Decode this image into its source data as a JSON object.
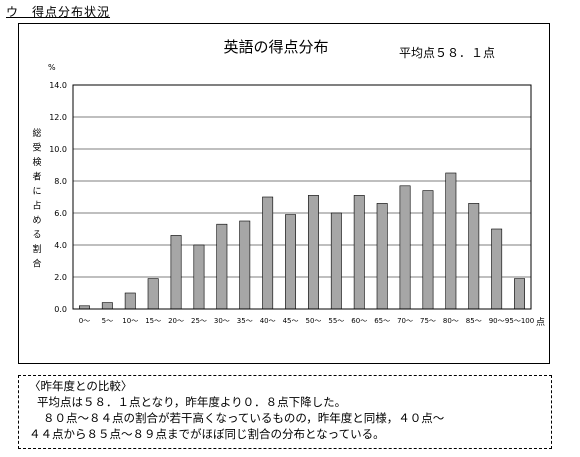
{
  "section_heading": "ウ　得点分布状況",
  "chart_data": {
    "type": "bar",
    "title": "英語の得点分布",
    "subtitle": "平均点５８．１点",
    "ylabel": "総受検者に占める割合",
    "yunit": "%",
    "xunit": "点",
    "ylim": [
      0,
      14
    ],
    "yticks": [
      "0.0",
      "2.0",
      "4.0",
      "6.0",
      "8.0",
      "10.0",
      "12.0",
      "14.0"
    ],
    "grid": true,
    "categories": [
      "0～",
      "5～",
      "10～",
      "15～",
      "20～",
      "25～",
      "30～",
      "35～",
      "40～",
      "45～",
      "50～",
      "55～",
      "60～",
      "65～",
      "70～",
      "75～",
      "80～",
      "85～",
      "90～",
      "95～100"
    ],
    "values": [
      0.2,
      0.4,
      1.0,
      1.9,
      4.6,
      4.0,
      5.3,
      5.5,
      7.0,
      5.9,
      7.1,
      6.0,
      7.1,
      6.6,
      7.7,
      7.4,
      8.5,
      6.6,
      5.0,
      1.9
    ],
    "bar_color": "#a6a6a6"
  },
  "comparison": {
    "heading": "〈昨年度との比較〉",
    "lines": [
      "平均点は５８．１点となり，昨年度より０．８点下降した。",
      "８０点～８４点の割合が若干高くなっているものの，昨年度と同様，４０点～",
      "４４点から８５点～８９点までがほぼ同じ割合の分布となっている。"
    ]
  }
}
